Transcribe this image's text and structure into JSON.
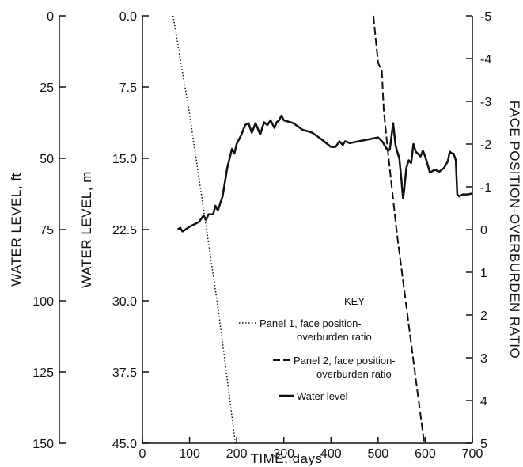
{
  "chart_data": {
    "type": "line",
    "xlabel": "TIME, days",
    "x_ticks": [
      "0",
      "100",
      "200",
      "300",
      "400",
      "500",
      "600",
      "700"
    ],
    "xlim": [
      0,
      700
    ],
    "ylabel_ft": "WATER LEVEL, ft",
    "y_ft_ticks": [
      "0",
      "25",
      "50",
      "75",
      "100",
      "125",
      "150"
    ],
    "ylim_ft": [
      0,
      150
    ],
    "ylabel_m": "WATER LEVEL, m",
    "y_m_ticks": [
      "0.0",
      "7.5",
      "15.0",
      "22.5",
      "30.0",
      "37.5",
      "45.0"
    ],
    "ylim_m": [
      0,
      45
    ],
    "ylabel_ratio": "FACE POSITION-OVERBURDEN RATIO",
    "y_ratio_ticks": [
      "-5",
      "-4",
      "-3",
      "-2",
      "-1",
      "0",
      "1",
      "2",
      "3",
      "4",
      "5"
    ],
    "ylim_ratio": [
      -5,
      5
    ],
    "key": {
      "title": "KEY",
      "panel1_line1": "Panel 1, face position-",
      "panel1_line2": "overburden ratio",
      "panel2_line1": "Panel 2, face position-",
      "panel2_line2": "overburden ratio",
      "water": "Water level"
    },
    "series": [
      {
        "style": "dotted",
        "axis": "ratio",
        "x": [
          65,
          80,
          100,
          120,
          140,
          160,
          180,
          197
        ],
        "y": [
          -5,
          -4,
          -2.7,
          -1.2,
          0.3,
          1.8,
          3.5,
          5
        ]
      },
      {
        "style": "dashed",
        "axis": "ratio",
        "x": [
          490,
          500,
          508,
          512,
          520,
          540,
          560,
          580,
          598
        ],
        "y": [
          -5,
          -3.9,
          -3.7,
          -2.8,
          -1.9,
          0.1,
          1.8,
          3.5,
          5
        ]
      },
      {
        "style": "solid",
        "axis": "m",
        "x": [
          75,
          80,
          85,
          100,
          120,
          130,
          135,
          140,
          150,
          155,
          160,
          170,
          180,
          190,
          195,
          200,
          210,
          218,
          225,
          232,
          240,
          250,
          258,
          265,
          272,
          280,
          285,
          290,
          295,
          300,
          320,
          340,
          360,
          380,
          400,
          410,
          418,
          425,
          430,
          440,
          460,
          480,
          500,
          510,
          518,
          522,
          525,
          532,
          537,
          540,
          545,
          550,
          553,
          555,
          560,
          565,
          570,
          575,
          580,
          590,
          595,
          600,
          610,
          620,
          630,
          640,
          648,
          652,
          657,
          660,
          665,
          668,
          672,
          680,
          690,
          700
        ],
        "y": [
          22.5,
          22.3,
          22.7,
          22.2,
          21.7,
          21.0,
          21.5,
          20.9,
          20.9,
          20.0,
          20.5,
          19.0,
          16.0,
          14.0,
          14.5,
          13.5,
          12.5,
          11.5,
          11.3,
          12.3,
          11.3,
          12.5,
          11.2,
          11.5,
          11.0,
          11.8,
          11.2,
          11.0,
          10.5,
          11.0,
          11.3,
          12.0,
          12.3,
          13.0,
          13.8,
          13.8,
          13.2,
          13.6,
          13.2,
          13.4,
          13.2,
          13.0,
          12.8,
          13.3,
          14.0,
          14.2,
          14.0,
          11.3,
          13.6,
          14.2,
          15.0,
          17.5,
          19.2,
          18.5,
          16.0,
          15.2,
          15.5,
          13.5,
          14.3,
          14.8,
          14.2,
          14.8,
          16.5,
          16.2,
          16.4,
          16.0,
          15.3,
          14.3,
          14.5,
          14.5,
          15.2,
          18.8,
          19.0,
          18.8,
          18.8,
          18.7
        ]
      }
    ]
  }
}
